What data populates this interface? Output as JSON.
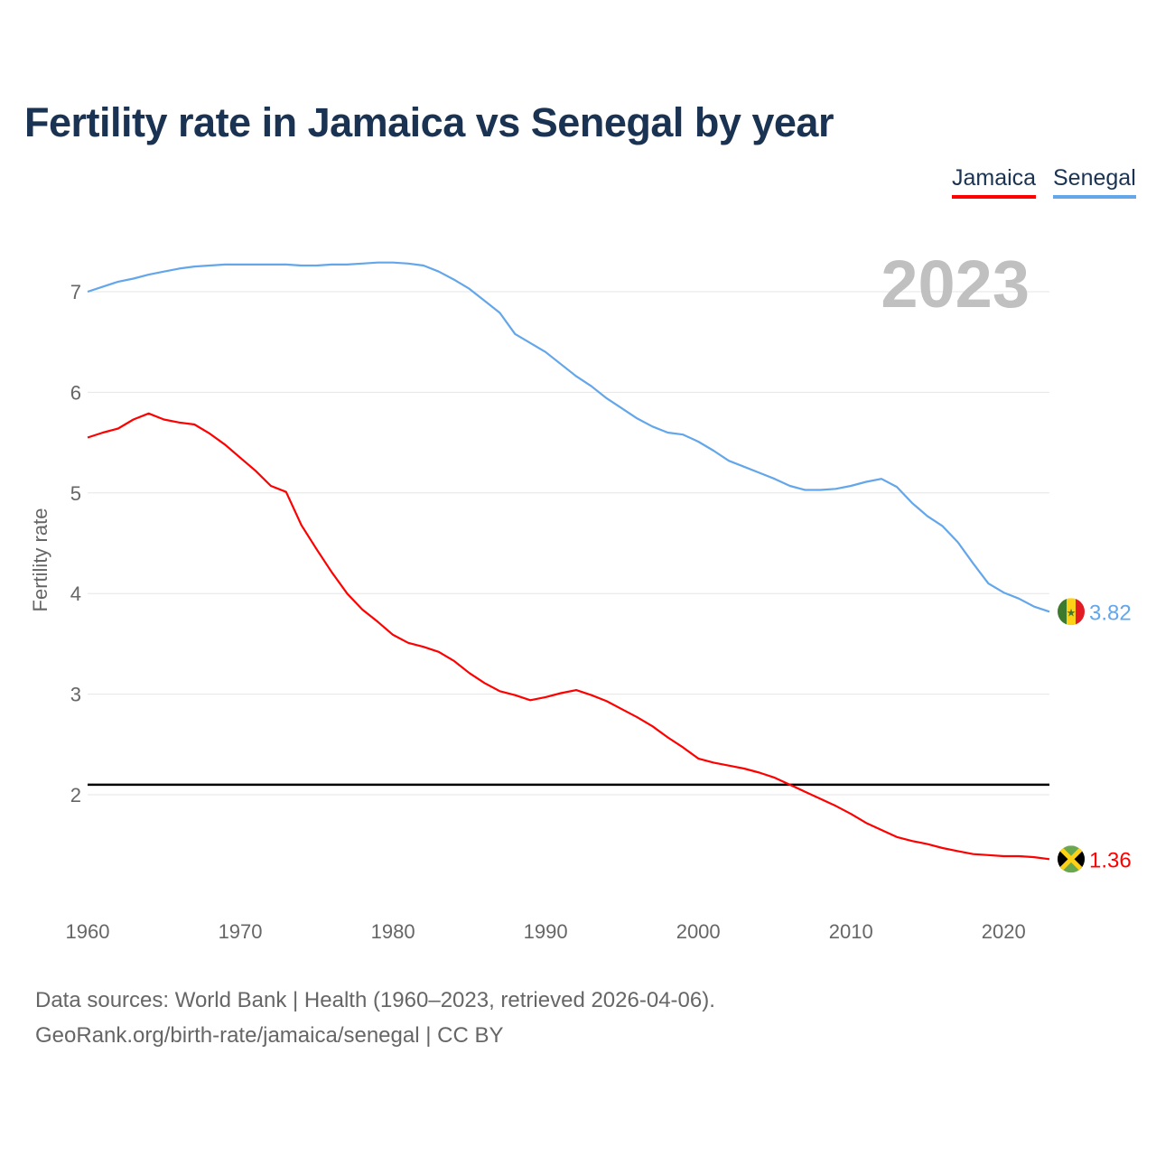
{
  "title": "Fertility rate in Jamaica vs Senegal by year",
  "source_lines": [
    "Data sources: World Bank | Health (1960–2023, retrieved 2026-04-06).",
    "GeoRank.org/birth-rate/jamaica/senegal | CC BY"
  ],
  "chart_data": {
    "type": "line",
    "title": "Fertility rate in Jamaica vs Senegal by year",
    "xlabel": "",
    "ylabel": "Fertility rate",
    "year_label": "2023",
    "xlim": [
      1960,
      2023
    ],
    "ylim": [
      1.1,
      7.3
    ],
    "x_ticks": [
      1960,
      1970,
      1980,
      1990,
      2000,
      2010,
      2020
    ],
    "y_ticks": [
      2,
      3,
      4,
      5,
      6,
      7
    ],
    "grid": true,
    "legend_position": "top-right",
    "reference_line": 2.1,
    "x": [
      1960,
      1961,
      1962,
      1963,
      1964,
      1965,
      1966,
      1967,
      1968,
      1969,
      1970,
      1971,
      1972,
      1973,
      1974,
      1975,
      1976,
      1977,
      1978,
      1979,
      1980,
      1981,
      1982,
      1983,
      1984,
      1985,
      1986,
      1987,
      1988,
      1989,
      1990,
      1991,
      1992,
      1993,
      1994,
      1995,
      1996,
      1997,
      1998,
      1999,
      2000,
      2001,
      2002,
      2003,
      2004,
      2005,
      2006,
      2007,
      2008,
      2009,
      2010,
      2011,
      2012,
      2013,
      2014,
      2015,
      2016,
      2017,
      2018,
      2019,
      2020,
      2021,
      2022,
      2023
    ],
    "series": [
      {
        "name": "Jamaica",
        "color": "#ff0000",
        "end_label": "1.36",
        "flag": "jamaica-flag",
        "values": [
          5.55,
          5.6,
          5.64,
          5.73,
          5.79,
          5.73,
          5.7,
          5.68,
          5.59,
          5.48,
          5.35,
          5.22,
          5.07,
          5.01,
          4.68,
          4.44,
          4.21,
          4.0,
          3.84,
          3.72,
          3.59,
          3.51,
          3.47,
          3.42,
          3.33,
          3.21,
          3.11,
          3.03,
          2.99,
          2.94,
          2.97,
          3.01,
          3.04,
          2.99,
          2.93,
          2.85,
          2.77,
          2.68,
          2.57,
          2.47,
          2.36,
          2.32,
          2.29,
          2.26,
          2.22,
          2.17,
          2.1,
          2.03,
          1.96,
          1.89,
          1.81,
          1.72,
          1.65,
          1.58,
          1.54,
          1.51,
          1.47,
          1.44,
          1.41,
          1.4,
          1.39,
          1.39,
          1.38,
          1.36
        ]
      },
      {
        "name": "Senegal",
        "color": "#63a6ea",
        "end_label": "3.82",
        "flag": "senegal-flag",
        "values": [
          7.0,
          7.05,
          7.1,
          7.13,
          7.17,
          7.2,
          7.23,
          7.25,
          7.26,
          7.27,
          7.27,
          7.27,
          7.27,
          7.27,
          7.26,
          7.26,
          7.27,
          7.27,
          7.28,
          7.29,
          7.29,
          7.28,
          7.26,
          7.2,
          7.12,
          7.03,
          6.91,
          6.79,
          6.58,
          6.49,
          6.4,
          6.28,
          6.16,
          6.06,
          5.94,
          5.84,
          5.74,
          5.66,
          5.6,
          5.58,
          5.51,
          5.42,
          5.32,
          5.26,
          5.2,
          5.14,
          5.07,
          5.03,
          5.03,
          5.04,
          5.07,
          5.11,
          5.14,
          5.06,
          4.9,
          4.77,
          4.67,
          4.51,
          4.3,
          4.1,
          4.01,
          3.95,
          3.87,
          3.82
        ]
      }
    ]
  }
}
